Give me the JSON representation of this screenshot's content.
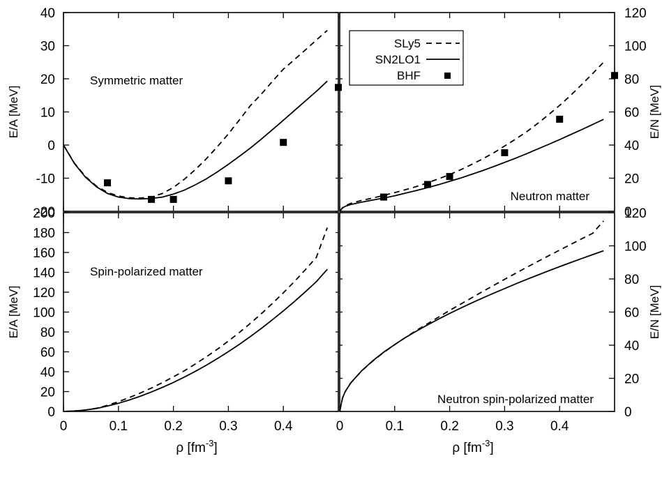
{
  "chart_data": [
    {
      "panel": "top-left",
      "type": "line",
      "annotation": "Symmetric matter",
      "ylabel": "E/A [MeV]",
      "ylabel_side": "left",
      "xlabel": "",
      "xlim": [
        0,
        0.5
      ],
      "ylim": [
        -20,
        40
      ],
      "yticks": [
        -20,
        -10,
        0,
        10,
        20,
        30,
        40
      ],
      "xticks": [],
      "legend": false,
      "series": [
        {
          "name": "SLy5",
          "style": "dashed",
          "x": [
            0,
            0.02,
            0.04,
            0.06,
            0.08,
            0.1,
            0.12,
            0.14,
            0.16,
            0.18,
            0.2,
            0.22,
            0.24,
            0.26,
            0.28,
            0.3,
            0.32,
            0.34,
            0.36,
            0.38,
            0.4,
            0.42,
            0.44,
            0.46,
            0.48
          ],
          "y": [
            0,
            -5.5,
            -9.5,
            -12.4,
            -14.3,
            -15.4,
            -15.9,
            -16.0,
            -15.7,
            -14.6,
            -12.8,
            -10.3,
            -7.4,
            -4.1,
            -0.5,
            3.4,
            7.6,
            11.9,
            15.4,
            19.2,
            22.9,
            25.8,
            28.7,
            31.7,
            34.6
          ]
        },
        {
          "name": "SN2LO1",
          "style": "solid",
          "x": [
            0,
            0.02,
            0.04,
            0.06,
            0.08,
            0.1,
            0.12,
            0.14,
            0.16,
            0.18,
            0.2,
            0.22,
            0.24,
            0.26,
            0.28,
            0.3,
            0.32,
            0.34,
            0.36,
            0.38,
            0.4,
            0.42,
            0.44,
            0.46,
            0.48
          ],
          "y": [
            0,
            -5.6,
            -9.7,
            -12.6,
            -14.6,
            -15.7,
            -16.2,
            -16.3,
            -16.1,
            -15.7,
            -14.8,
            -13.6,
            -12.0,
            -10.2,
            -8.1,
            -5.8,
            -3.4,
            -0.9,
            1.8,
            4.6,
            7.5,
            10.4,
            13.3,
            16.2,
            19.3
          ]
        },
        {
          "name": "BHF",
          "style": "points",
          "x": [
            0.08,
            0.16,
            0.2,
            0.3,
            0.4,
            0.5
          ],
          "y": [
            -11.4,
            -16.4,
            -16.4,
            -10.8,
            0.8,
            17.4
          ]
        }
      ]
    },
    {
      "panel": "top-right",
      "type": "line",
      "annotation": "Neutron matter",
      "ylabel": "E/N [MeV]",
      "ylabel_side": "right",
      "xlabel": "",
      "xlim": [
        0,
        0.5
      ],
      "ylim": [
        0,
        120
      ],
      "yticks": [
        0,
        20,
        40,
        60,
        80,
        100,
        120
      ],
      "xticks": [],
      "legend": true,
      "legend_position": "top-left",
      "series": [
        {
          "name": "SLy5",
          "style": "dashed",
          "x": [
            0,
            0.005,
            0.01,
            0.02,
            0.04,
            0.06,
            0.08,
            0.1,
            0.12,
            0.14,
            0.16,
            0.18,
            0.2,
            0.22,
            0.24,
            0.26,
            0.28,
            0.3,
            0.32,
            0.34,
            0.36,
            0.38,
            0.4,
            0.42,
            0.44,
            0.46,
            0.48
          ],
          "y": [
            0,
            2.2,
            3.4,
            4.8,
            6.6,
            8.0,
            9.6,
            11.3,
            13.1,
            15.0,
            17.2,
            19.6,
            22.2,
            25.1,
            28.3,
            31.6,
            35.3,
            39.4,
            43.6,
            48.0,
            53.0,
            58.3,
            63.9,
            70.0,
            76.4,
            83.1,
            90.0
          ]
        },
        {
          "name": "SN2LO1",
          "style": "solid",
          "x": [
            0,
            0.005,
            0.01,
            0.02,
            0.04,
            0.06,
            0.08,
            0.1,
            0.12,
            0.14,
            0.16,
            0.18,
            0.2,
            0.22,
            0.24,
            0.26,
            0.28,
            0.3,
            0.32,
            0.34,
            0.36,
            0.38,
            0.4,
            0.42,
            0.44,
            0.46,
            0.48
          ],
          "y": [
            0,
            2.0,
            3.0,
            4.1,
            5.5,
            6.8,
            8.0,
            9.4,
            11.0,
            12.6,
            14.3,
            16.1,
            18.1,
            20.1,
            22.3,
            24.6,
            27.0,
            29.5,
            32.1,
            34.8,
            37.6,
            40.4,
            43.3,
            46.3,
            49.3,
            52.4,
            55.5
          ]
        },
        {
          "name": "BHF",
          "style": "points",
          "x": [
            0.08,
            0.16,
            0.2,
            0.3,
            0.4,
            0.5
          ],
          "y": [
            8.6,
            16.2,
            21.0,
            35.4,
            55.6,
            82.0
          ]
        }
      ]
    },
    {
      "panel": "bottom-left",
      "type": "line",
      "annotation": "Spin-polarized matter",
      "ylabel": "E/A [MeV]",
      "ylabel_side": "left",
      "xlabel": "ρ [fm-3]",
      "xlim": [
        0,
        0.5
      ],
      "ylim": [
        0,
        200
      ],
      "yticks": [
        0,
        20,
        40,
        60,
        80,
        100,
        120,
        140,
        160,
        180,
        200
      ],
      "xticks": [
        0,
        0.1,
        0.2,
        0.3,
        0.4
      ],
      "legend": false,
      "series": [
        {
          "name": "SLy5",
          "style": "dashed",
          "x": [
            0,
            0.02,
            0.04,
            0.06,
            0.08,
            0.1,
            0.12,
            0.14,
            0.16,
            0.18,
            0.2,
            0.22,
            0.24,
            0.26,
            0.28,
            0.3,
            0.32,
            0.34,
            0.36,
            0.38,
            0.4,
            0.42,
            0.44,
            0.46,
            0.48
          ],
          "y": [
            0,
            0.5,
            1.5,
            3.2,
            6.2,
            9.8,
            14.0,
            18.6,
            23.6,
            29.0,
            34.8,
            41.0,
            47.8,
            55.0,
            62.6,
            70.8,
            79.5,
            88.6,
            98.4,
            108.6,
            119.4,
            130.7,
            142.6,
            155.0,
            185.0
          ]
        },
        {
          "name": "SN2LO1",
          "style": "solid",
          "x": [
            0,
            0.02,
            0.04,
            0.06,
            0.08,
            0.1,
            0.12,
            0.14,
            0.16,
            0.18,
            0.2,
            0.22,
            0.24,
            0.26,
            0.28,
            0.3,
            0.32,
            0.34,
            0.36,
            0.38,
            0.4,
            0.42,
            0.44,
            0.46,
            0.48
          ],
          "y": [
            0,
            0.5,
            1.4,
            3.0,
            5.4,
            8.2,
            11.6,
            15.4,
            19.6,
            24.2,
            29.2,
            34.6,
            40.4,
            46.6,
            53.2,
            60.2,
            67.6,
            75.4,
            83.6,
            92.2,
            101.2,
            110.6,
            120.4,
            130.6,
            143.0
          ]
        }
      ]
    },
    {
      "panel": "bottom-right",
      "type": "line",
      "annotation": "Neutron spin-polarized matter",
      "ylabel": "E/N [MeV]",
      "ylabel_side": "right",
      "xlabel": "ρ [fm-3]",
      "xlim": [
        0,
        0.5
      ],
      "ylim": [
        0,
        120
      ],
      "yticks": [
        0,
        20,
        40,
        60,
        80,
        100,
        120
      ],
      "xticks": [
        0,
        0.1,
        0.2,
        0.3,
        0.4
      ],
      "legend": false,
      "series": [
        {
          "name": "SLy5",
          "style": "dashed",
          "x": [
            0,
            0.005,
            0.01,
            0.02,
            0.04,
            0.06,
            0.08,
            0.1,
            0.12,
            0.14,
            0.16,
            0.18,
            0.2,
            0.22,
            0.24,
            0.26,
            0.28,
            0.3,
            0.32,
            0.34,
            0.36,
            0.38,
            0.4,
            0.42,
            0.44,
            0.46,
            0.48
          ],
          "y": [
            0,
            8.0,
            12.0,
            17.2,
            24.5,
            30.4,
            35.6,
            40.3,
            44.8,
            49.0,
            53.0,
            57.0,
            61.0,
            64.8,
            68.6,
            72.4,
            76.1,
            79.8,
            83.4,
            87.0,
            90.5,
            94.0,
            97.4,
            100.8,
            104.2,
            107.5,
            115.0
          ]
        },
        {
          "name": "SN2LO1",
          "style": "solid",
          "x": [
            0,
            0.005,
            0.01,
            0.02,
            0.04,
            0.06,
            0.08,
            0.1,
            0.12,
            0.14,
            0.16,
            0.18,
            0.2,
            0.22,
            0.24,
            0.26,
            0.28,
            0.3,
            0.32,
            0.34,
            0.36,
            0.38,
            0.4,
            0.42,
            0.44,
            0.46,
            0.48
          ],
          "y": [
            0,
            8.0,
            12.0,
            17.2,
            24.6,
            30.6,
            35.8,
            40.4,
            44.7,
            48.6,
            52.3,
            55.8,
            59.2,
            62.4,
            65.5,
            68.5,
            71.4,
            74.2,
            77.0,
            79.7,
            82.3,
            84.9,
            87.4,
            89.9,
            92.3,
            94.7,
            97.0
          ]
        }
      ]
    }
  ]
}
